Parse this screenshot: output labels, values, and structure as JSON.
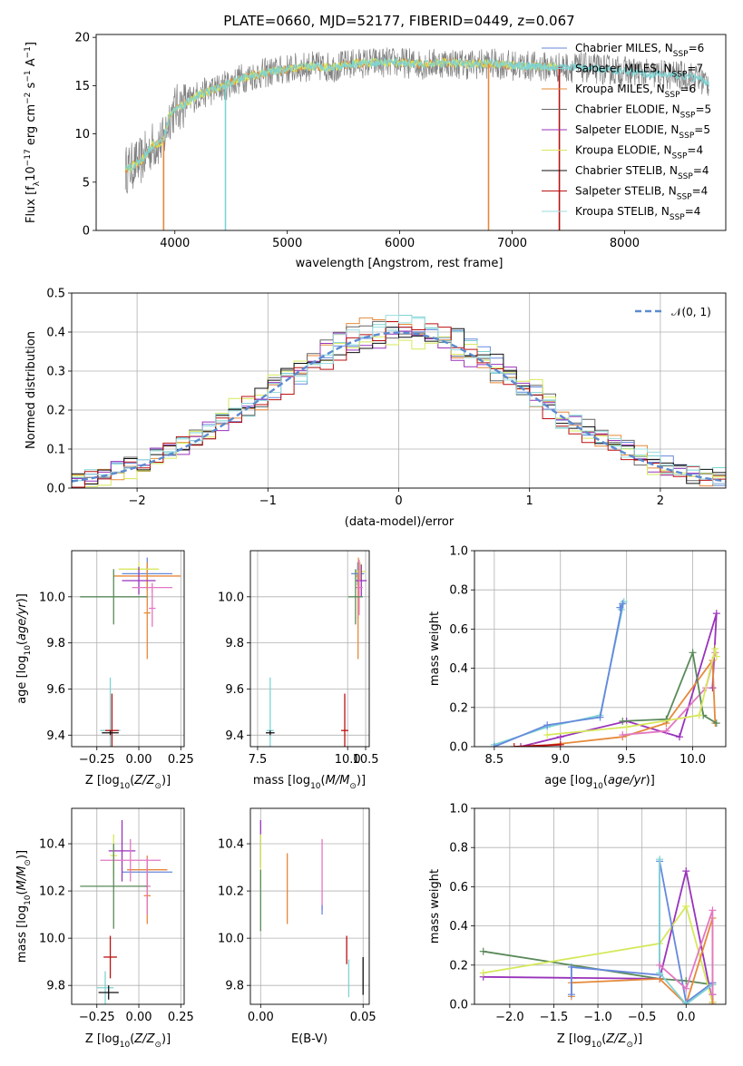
{
  "colors": {
    "chabrier_miles": "#6688dd",
    "salpeter_miles": "#7fd3d3",
    "kroupa_miles": "#e6893a",
    "chabrier_elodie": "#666666",
    "salpeter_elodie": "#9933bb",
    "kroupa_elodie": "#d6e85a",
    "chabrier_stelib": "#111111",
    "salpeter_stelib": "#bb1111",
    "kroupa_stelib": "#99dddd",
    "pink": "#e377c2",
    "green": "#5a8a5a",
    "data": "#808080",
    "normal": "#5b8bd0"
  },
  "chart_data": [
    {
      "id": "spectrum",
      "type": "line",
      "title": "PLATE=0660, MJD=52177, FIBERID=0449, z=0.067",
      "xlabel": "wavelength [Angstrom, rest frame]",
      "ylabel": "Flux [fλ10⁻¹⁷ erg cm⁻² s⁻¹ A⁻¹]",
      "xlim": [
        3300,
        8900
      ],
      "ylim": [
        0,
        20.3
      ],
      "xticks": [
        4000,
        5000,
        6000,
        7000,
        8000
      ],
      "yticks": [
        0,
        5,
        10,
        15,
        20
      ],
      "continuum": {
        "x": [
          3560,
          3600,
          3700,
          3800,
          3900,
          3950,
          4000,
          4100,
          4200,
          4400,
          4600,
          4800,
          5000,
          5200,
          5400,
          5600,
          5800,
          6000,
          6200,
          6400,
          6600,
          6800,
          7000,
          7200,
          7400,
          7600,
          7800,
          8000,
          8200,
          8400,
          8600,
          8750
        ],
        "y": [
          6.3,
          6.5,
          7.2,
          8.8,
          9.3,
          11.8,
          12.6,
          13.2,
          14.0,
          14.8,
          15.8,
          16.3,
          16.7,
          17.0,
          16.9,
          17.3,
          17.4,
          17.4,
          17.2,
          17.4,
          17.2,
          17.3,
          17.1,
          17.0,
          16.9,
          16.9,
          16.7,
          16.5,
          16.2,
          16.1,
          15.9,
          15.3
        ]
      },
      "data_noise_amplitude": 1.6,
      "data_xrange": [
        3560,
        8750
      ],
      "model_xrange": [
        3560,
        7400
      ],
      "dropouts": [
        {
          "x": 3900,
          "color": "#e6893a"
        },
        {
          "x": 4450,
          "color": "#7fd3d3"
        },
        {
          "x": 6790,
          "color": "#e6893a"
        },
        {
          "x": 7420,
          "color": "#bb1111"
        }
      ],
      "legend_position": "right",
      "legend": [
        {
          "label": "Chabrier MILES, N",
          "sub": "SSP",
          "n": "=6",
          "color": "#6688dd"
        },
        {
          "label": "Salpeter MILES, N",
          "sub": "SSP",
          "n": "=7",
          "color": "#7fd3d3"
        },
        {
          "label": "Kroupa MILES, N",
          "sub": "SSP",
          "n": "=6",
          "color": "#e6893a"
        },
        {
          "label": "Chabrier ELODIE, N",
          "sub": "SSP",
          "n": "=5",
          "color": "#666666"
        },
        {
          "label": "Salpeter ELODIE, N",
          "sub": "SSP",
          "n": "=5",
          "color": "#9933bb"
        },
        {
          "label": "Kroupa ELODIE, N",
          "sub": "SSP",
          "n": "=4",
          "color": "#d6e85a"
        },
        {
          "label": "Chabrier STELIB, N",
          "sub": "SSP",
          "n": "=4",
          "color": "#111111"
        },
        {
          "label": "Salpeter STELIB, N",
          "sub": "SSP",
          "n": "=4",
          "color": "#bb1111"
        },
        {
          "label": "Kroupa STELIB, N",
          "sub": "SSP",
          "n": "=4",
          "color": "#99dddd"
        }
      ]
    },
    {
      "id": "residuals",
      "type": "line",
      "xlabel": "(data-model)/error",
      "ylabel": "Normed distribution",
      "xlim": [
        -2.5,
        2.5
      ],
      "ylim": [
        0,
        0.5
      ],
      "xticks": [
        -2,
        -1,
        0,
        1,
        2
      ],
      "yticks": [
        0.0,
        0.1,
        0.2,
        0.3,
        0.4,
        0.5
      ],
      "grid": true,
      "bin_width": 0.1,
      "hist_spread": 0.028,
      "normal_curve": {
        "label": "𝒩(0, 1)",
        "color": "#5b8bd0",
        "style": "dashed"
      },
      "legend_position": "top-right"
    },
    {
      "id": "age_vs_Z",
      "type": "scatter",
      "xlabel": "Z [log₁₀(Z/Z⊙)]",
      "ylabel": "age  [log₁₀(age/yr)]",
      "xlim": [
        -0.4,
        0.27
      ],
      "ylim": [
        9.35,
        10.2
      ],
      "xticks": [
        -0.25,
        0.0,
        0.25
      ],
      "yticks": [
        9.4,
        9.6,
        9.8,
        10.0
      ],
      "grid": true,
      "points": [
        {
          "x": 0.05,
          "y": 10.1,
          "ex": 0.15,
          "ey": 0.07,
          "color": "#6688dd"
        },
        {
          "x": 0.05,
          "y": 10.09,
          "ex": 0.2,
          "ey": 0.06,
          "color": "#e6893a"
        },
        {
          "x": 0.05,
          "y": 9.93,
          "ex": 0.02,
          "ey": 0.2,
          "color": "#e6893a"
        },
        {
          "x": 0.0,
          "y": 10.12,
          "ex": 0.12,
          "ey": 0.03,
          "color": "#d6e85a"
        },
        {
          "x": 0.0,
          "y": 10.07,
          "ex": 0.1,
          "ey": 0.06,
          "color": "#9933bb"
        },
        {
          "x": 0.08,
          "y": 10.04,
          "ex": 0.12,
          "ey": 0.02,
          "color": "#e377c2"
        },
        {
          "x": 0.08,
          "y": 9.95,
          "ex": 0.02,
          "ey": 0.08,
          "color": "#e377c2"
        },
        {
          "x": -0.15,
          "y": 10.0,
          "ex": 0.2,
          "ey": 0.12,
          "color": "#5a8a5a"
        },
        {
          "x": -0.17,
          "y": 9.42,
          "ex": 0.06,
          "ey": 0.23,
          "color": "#7fd3d3"
        },
        {
          "x": -0.16,
          "y": 9.42,
          "ex": 0.04,
          "ey": 0.16,
          "color": "#bb1111"
        },
        {
          "x": -0.17,
          "y": 9.41,
          "ex": 0.05,
          "ey": 0.01,
          "color": "#111111"
        }
      ]
    },
    {
      "id": "age_vs_mass",
      "type": "scatter",
      "xlabel": "mass [log₁₀(M/M⊙)]",
      "ylabel": "",
      "xlim": [
        7.3,
        10.6
      ],
      "ylim": [
        9.35,
        10.2
      ],
      "xticks": [
        7.5,
        10.0,
        10.5
      ],
      "yticks": [
        9.4,
        9.6,
        9.8,
        10.0
      ],
      "grid": true,
      "points": [
        {
          "x": 10.28,
          "y": 10.1,
          "ex": 0.18,
          "ey": 0.05,
          "color": "#6688dd"
        },
        {
          "x": 10.3,
          "y": 10.09,
          "ex": 0.08,
          "ey": 0.08,
          "color": "#e6893a"
        },
        {
          "x": 10.29,
          "y": 9.91,
          "ex": 0.02,
          "ey": 0.18,
          "color": "#e6893a"
        },
        {
          "x": 10.35,
          "y": 10.11,
          "ex": 0.15,
          "ey": 0.04,
          "color": "#d6e85a"
        },
        {
          "x": 10.38,
          "y": 10.07,
          "ex": 0.15,
          "ey": 0.07,
          "color": "#9933bb"
        },
        {
          "x": 10.32,
          "y": 10.04,
          "ex": 0.1,
          "ey": 0.12,
          "color": "#e377c2"
        },
        {
          "x": 10.22,
          "y": 10.0,
          "ex": 0.2,
          "ey": 0.12,
          "color": "#5a8a5a"
        },
        {
          "x": 7.85,
          "y": 9.42,
          "ex": 0.1,
          "ey": 0.23,
          "color": "#7fd3d3"
        },
        {
          "x": 9.92,
          "y": 9.42,
          "ex": 0.1,
          "ey": 0.16,
          "color": "#bb1111"
        },
        {
          "x": 7.85,
          "y": 9.41,
          "ex": 0.12,
          "ey": 0.01,
          "color": "#111111"
        }
      ]
    },
    {
      "id": "weight_vs_age",
      "type": "line",
      "xlabel": "age  [log₁₀(age/yr)]",
      "ylabel": "mass weight",
      "xlim": [
        8.35,
        10.25
      ],
      "ylim": [
        0.0,
        1.0
      ],
      "xticks": [
        8.5,
        9.0,
        9.5,
        10.0
      ],
      "yticks": [
        0.0,
        0.2,
        0.4,
        0.6,
        0.8,
        1.0
      ],
      "grid": true,
      "series": [
        {
          "color": "#7fd3d3",
          "x": [
            8.5,
            8.9,
            9.3,
            9.48,
            9.46
          ],
          "y": [
            0.01,
            0.1,
            0.16,
            0.74,
            0.7
          ]
        },
        {
          "color": "#6688dd",
          "x": [
            8.5,
            8.9,
            9.3,
            9.47,
            9.45
          ],
          "y": [
            0.0,
            0.11,
            0.15,
            0.73,
            0.71
          ]
        },
        {
          "color": "#9933bb",
          "x": [
            8.7,
            9.0,
            9.5,
            9.9,
            10.18,
            10.15
          ],
          "y": [
            0.0,
            0.05,
            0.13,
            0.05,
            0.68,
            0.3
          ]
        },
        {
          "color": "#e6893a",
          "x": [
            8.8,
            9.47,
            9.8,
            10.15,
            10.17
          ],
          "y": [
            0.0,
            0.05,
            0.12,
            0.44,
            0.12
          ]
        },
        {
          "color": "#e377c2",
          "x": [
            9.47,
            9.8,
            10.1,
            10.17
          ],
          "y": [
            0.06,
            0.08,
            0.3,
            0.48
          ]
        },
        {
          "color": "#5a8a5a",
          "x": [
            9.47,
            9.8,
            10.0,
            10.08,
            10.18
          ],
          "y": [
            0.13,
            0.14,
            0.48,
            0.16,
            0.12
          ]
        },
        {
          "color": "#d6e85a",
          "x": [
            8.9,
            9.5,
            10.05,
            10.17,
            10.18
          ],
          "y": [
            0.06,
            0.1,
            0.16,
            0.5,
            0.46
          ]
        },
        {
          "color": "#bb1111",
          "x": [
            8.65,
            9.0
          ],
          "y": [
            0.0,
            0.01
          ]
        }
      ]
    },
    {
      "id": "mass_vs_Z",
      "type": "scatter",
      "xlabel": "Z [log₁₀(Z/Z⊙)]",
      "ylabel": "mass [log₁₀(M/M⊙)]",
      "xlim": [
        -0.4,
        0.27
      ],
      "ylim": [
        9.72,
        10.55
      ],
      "xticks": [
        -0.25,
        0.0,
        0.25
      ],
      "yticks": [
        9.8,
        10.0,
        10.2,
        10.4
      ],
      "grid": true,
      "points": [
        {
          "x": 0.05,
          "y": 10.28,
          "ex": 0.15,
          "ey": 0.02,
          "color": "#6688dd"
        },
        {
          "x": 0.05,
          "y": 10.29,
          "ex": 0.12,
          "ey": 0.06,
          "color": "#e6893a"
        },
        {
          "x": 0.05,
          "y": 10.18,
          "ex": 0.02,
          "ey": 0.12,
          "color": "#e6893a"
        },
        {
          "x": -0.1,
          "y": 10.37,
          "ex": 0.08,
          "ey": 0.13,
          "color": "#9933bb"
        },
        {
          "x": -0.15,
          "y": 10.35,
          "ex": 0.02,
          "ey": 0.09,
          "color": "#d6e85a"
        },
        {
          "x": -0.05,
          "y": 10.33,
          "ex": 0.18,
          "ey": 0.09,
          "color": "#e377c2"
        },
        {
          "x": 0.05,
          "y": 10.22,
          "ex": 0.02,
          "ey": 0.12,
          "color": "#e377c2"
        },
        {
          "x": -0.15,
          "y": 10.22,
          "ex": 0.2,
          "ey": 0.18,
          "color": "#5a8a5a"
        },
        {
          "x": -0.17,
          "y": 9.92,
          "ex": 0.04,
          "ey": 0.09,
          "color": "#bb1111"
        },
        {
          "x": -0.2,
          "y": 9.79,
          "ex": 0.05,
          "ey": 0.07,
          "color": "#7fd3d3"
        },
        {
          "x": -0.18,
          "y": 9.77,
          "ex": 0.06,
          "ey": 0.03,
          "color": "#111111"
        }
      ]
    },
    {
      "id": "mass_vs_ebv",
      "type": "scatter",
      "xlabel": "E(B-V)",
      "ylabel": "",
      "xlim": [
        -0.005,
        0.053
      ],
      "ylim": [
        9.72,
        10.55
      ],
      "xticks": [
        0.0,
        0.05
      ],
      "xtick_labels": [
        "0.00",
        "0.05"
      ],
      "yticks": [
        9.8,
        10.0,
        10.2,
        10.4
      ],
      "grid": true,
      "points": [
        {
          "x": 0.0,
          "y": 10.4,
          "ex": 0.0,
          "ey": 0.1,
          "color": "#9933bb"
        },
        {
          "x": 0.0,
          "y": 10.33,
          "ex": 0.0,
          "ey": 0.11,
          "color": "#d6e85a"
        },
        {
          "x": 0.0,
          "y": 10.16,
          "ex": 0.0,
          "ey": 0.13,
          "color": "#5a8a5a"
        },
        {
          "x": 0.013,
          "y": 10.21,
          "ex": 0.0,
          "ey": 0.15,
          "color": "#e6893a"
        },
        {
          "x": 0.03,
          "y": 10.27,
          "ex": 0.0,
          "ey": 0.15,
          "color": "#e377c2"
        },
        {
          "x": 0.03,
          "y": 10.12,
          "ex": 0.0,
          "ey": 0.02,
          "color": "#6688dd"
        },
        {
          "x": 0.042,
          "y": 9.95,
          "ex": 0.0,
          "ey": 0.06,
          "color": "#bb1111"
        },
        {
          "x": 0.043,
          "y": 9.83,
          "ex": 0.0,
          "ey": 0.08,
          "color": "#7fd3d3"
        },
        {
          "x": 0.05,
          "y": 9.84,
          "ex": 0.0,
          "ey": 0.08,
          "color": "#111111"
        }
      ]
    },
    {
      "id": "weight_vs_Z",
      "type": "line",
      "xlabel": "Z [log₁₀(Z/Z⊙)]",
      "ylabel": "mass weight",
      "xlim": [
        -2.4,
        0.45
      ],
      "ylim": [
        0.0,
        1.0
      ],
      "xticks": [
        -2.0,
        -1.5,
        -1.0,
        -0.5,
        0.0
      ],
      "yticks": [
        0.0,
        0.2,
        0.4,
        0.6,
        0.8,
        1.0
      ],
      "grid": true,
      "series": [
        {
          "color": "#5a8a5a",
          "x": [
            -2.3,
            -0.3,
            0.0,
            0.3,
            0.3
          ],
          "y": [
            0.27,
            0.13,
            0.12,
            0.1,
            0.0
          ]
        },
        {
          "color": "#9933bb",
          "x": [
            -2.3,
            -0.3,
            0.0,
            0.3,
            0.3
          ],
          "y": [
            0.14,
            0.13,
            0.68,
            0.01,
            0.05
          ]
        },
        {
          "color": "#d6e85a",
          "x": [
            -2.3,
            -0.3,
            0.0,
            0.3
          ],
          "y": [
            0.16,
            0.31,
            0.5,
            0.01
          ]
        },
        {
          "color": "#e6893a",
          "x": [
            -1.3,
            -1.3,
            -0.3,
            0.0,
            0.3,
            0.3
          ],
          "y": [
            0.04,
            0.11,
            0.13,
            0.0,
            0.44,
            0.0
          ]
        },
        {
          "color": "#6688dd",
          "x": [
            -1.3,
            -1.3,
            -0.3,
            -0.3,
            0.0,
            0.3
          ],
          "y": [
            0.05,
            0.19,
            0.15,
            0.73,
            0.01,
            0.11
          ]
        },
        {
          "color": "#7fd3d3",
          "x": [
            -0.3,
            -0.3,
            0.0,
            0.3
          ],
          "y": [
            0.74,
            0.16,
            0.0,
            0.1
          ]
        },
        {
          "color": "#e377c2",
          "x": [
            -0.3,
            0.0,
            0.3,
            0.3
          ],
          "y": [
            0.2,
            0.08,
            0.48,
            0.05
          ]
        }
      ]
    }
  ]
}
